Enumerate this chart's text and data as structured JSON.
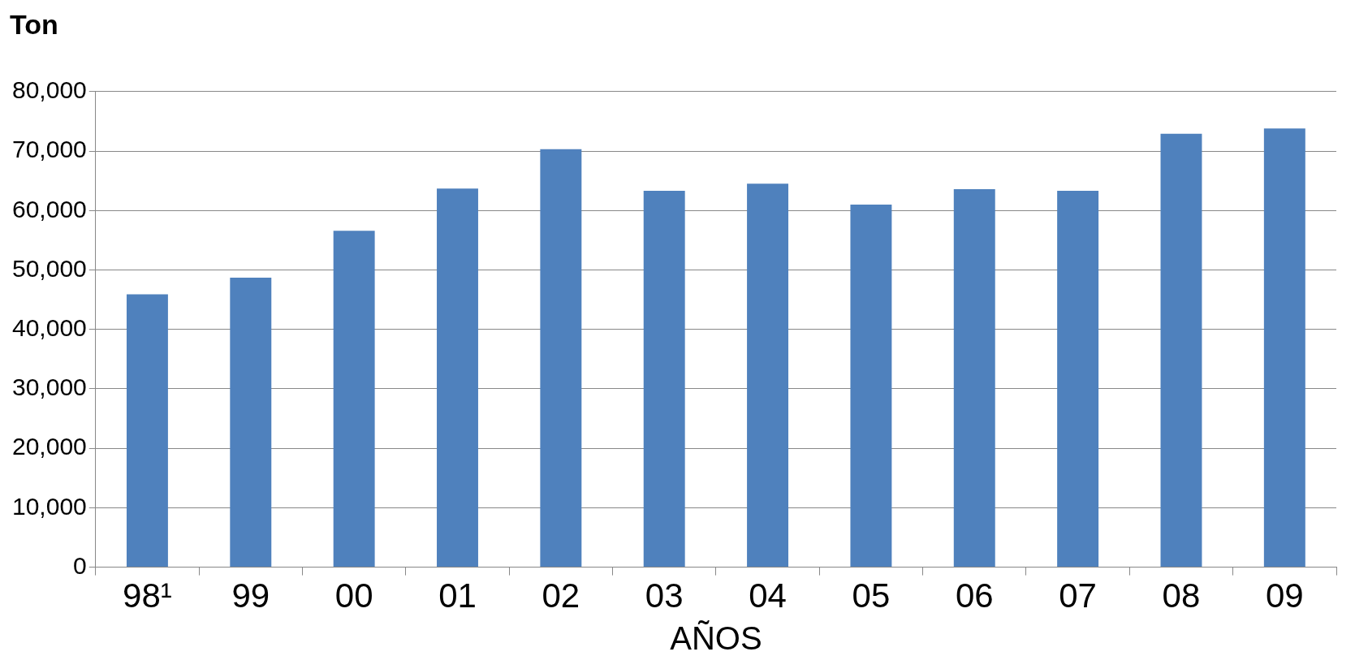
{
  "chart_data": {
    "type": "bar",
    "ylabel": "Ton",
    "xlabel": "AÑOS",
    "categories": [
      "98¹",
      "99",
      "00",
      "01",
      "02",
      "03",
      "04",
      "05",
      "06",
      "07",
      "08",
      "09"
    ],
    "values": [
      45900,
      48700,
      56600,
      63700,
      70300,
      63300,
      64500,
      61000,
      63600,
      63300,
      72900,
      73800
    ],
    "color": "#4f81bd",
    "ylim": [
      0,
      80000
    ],
    "yticks": [
      0,
      {
        "value": 10000,
        "label": "10,000"
      },
      {
        "value": 20000,
        "label": "20,000"
      },
      {
        "value": 30000,
        "label": "30,000"
      },
      {
        "value": 40000,
        "label": "40,000"
      },
      {
        "value": 50000,
        "label": "50,000"
      },
      {
        "value": 60000,
        "label": "60,000"
      },
      {
        "value": 70000,
        "label": "70,000"
      },
      {
        "value": 80000,
        "label": "80,000"
      }
    ],
    "grid": "y",
    "legend": false
  }
}
